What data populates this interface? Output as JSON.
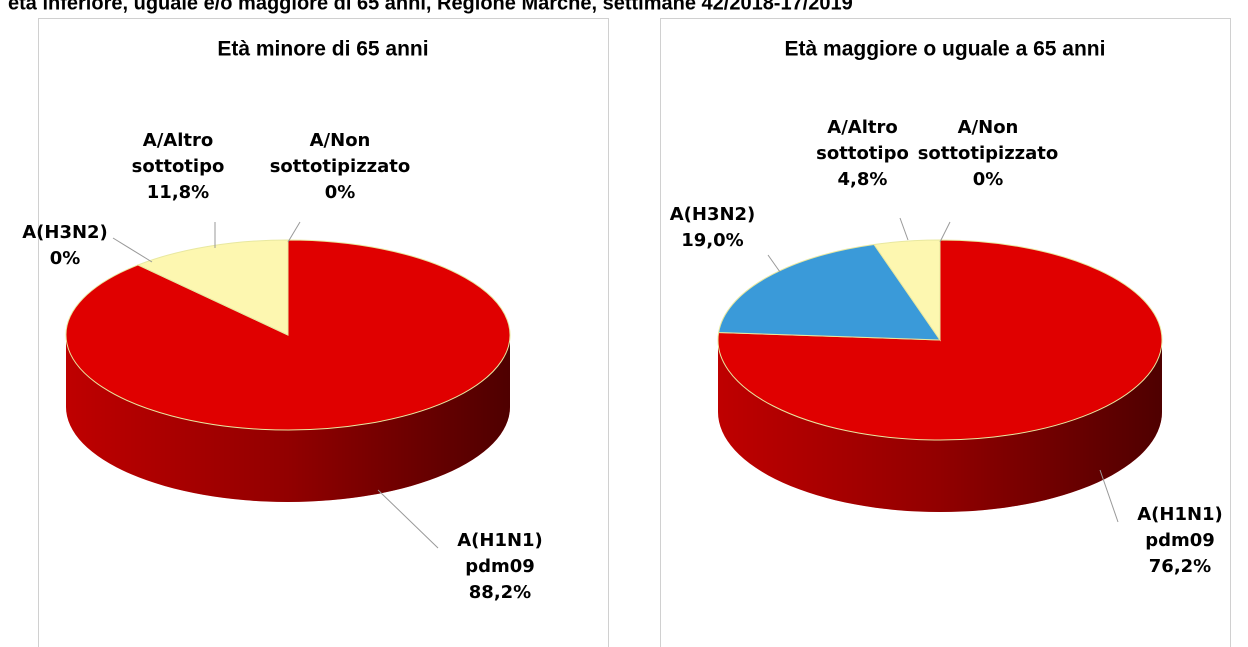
{
  "title": "età inferiore, uguale e/o maggiore di 65 anni, Regione Marche, settimane 42/2018-17/2019",
  "chart_data": [
    {
      "type": "pie",
      "title": "Età minore di 65 anni",
      "categories": [
        "A(H1N1) pdm09",
        "A(H3N2)",
        "A/Altro sottotipo",
        "A/Non sottotipizzato"
      ],
      "values": [
        88.2,
        0,
        11.8,
        0
      ],
      "value_labels": [
        "88,2%",
        "0%",
        "11,8%",
        "0%"
      ],
      "colors": [
        "#e00000",
        "#3a9ad9",
        "#fdf7b0",
        "#f0e68c"
      ]
    },
    {
      "type": "pie",
      "title": "Età maggiore o uguale a 65 anni",
      "categories": [
        "A(H1N1) pdm09",
        "A(H3N2)",
        "A/Altro sottotipo",
        "A/Non sottotipizzato"
      ],
      "values": [
        76.2,
        19.0,
        4.8,
        0
      ],
      "value_labels": [
        "76,2%",
        "19,0%",
        "4,8%",
        "0%"
      ],
      "colors": [
        "#e00000",
        "#3a9ad9",
        "#fdf7b0",
        "#f0e68c"
      ]
    }
  ]
}
